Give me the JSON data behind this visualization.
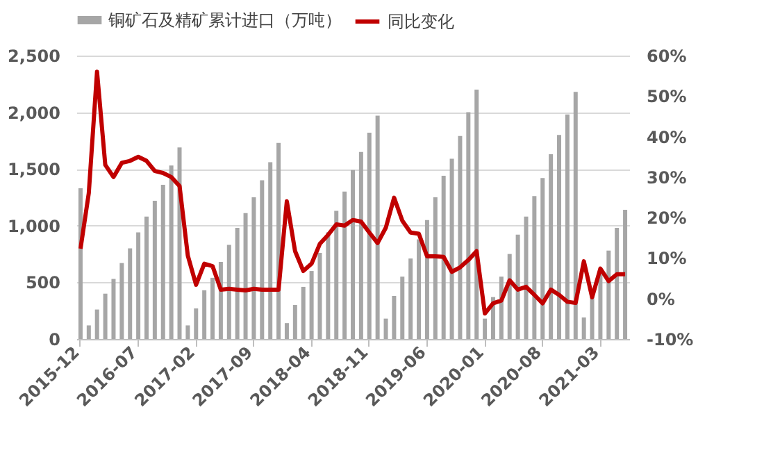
{
  "chart_data": {
    "type": "bar",
    "categories": [
      "2015-12",
      null,
      null,
      null,
      null,
      null,
      null,
      "2016-07",
      null,
      null,
      null,
      null,
      null,
      null,
      "2017-02",
      null,
      null,
      null,
      null,
      null,
      null,
      "2017-09",
      null,
      null,
      null,
      null,
      null,
      null,
      "2018-04",
      null,
      null,
      null,
      null,
      null,
      null,
      "2018-11",
      null,
      null,
      null,
      null,
      null,
      null,
      "2019-06",
      null,
      null,
      null,
      null,
      null,
      null,
      "2020-01",
      null,
      null,
      null,
      null,
      null,
      null,
      "2020-08",
      null,
      null,
      null,
      null,
      null,
      null,
      "2021-03",
      null,
      null,
      null
    ],
    "series": [
      {
        "name": "铜矿石及精矿累计进口（万吨）",
        "color": "#a6a6a6",
        "values": [
          1330,
          120,
          260,
          400,
          530,
          670,
          800,
          940,
          1080,
          1220,
          1360,
          1530,
          1690,
          120,
          270,
          430,
          540,
          680,
          830,
          980,
          1110,
          1250,
          1400,
          1560,
          1730,
          140,
          300,
          460,
          600,
          760,
          940,
          1130,
          1300,
          1490,
          1650,
          1820,
          1970,
          180,
          380,
          550,
          710,
          880,
          1050,
          1250,
          1440,
          1590,
          1790,
          2000,
          2200,
          180,
          370,
          550,
          750,
          920,
          1080,
          1260,
          1420,
          1630,
          1800,
          1980,
          2180,
          190,
          370,
          570,
          780,
          980,
          1140
        ]
      },
      {
        "name": "同比变化",
        "type": "line",
        "axis": "y2",
        "color": "#c00000",
        "values": [
          12.3,
          26,
          56,
          33,
          30,
          33.5,
          34,
          35,
          34,
          31.5,
          31,
          30,
          27.8,
          10.6,
          3.4,
          8.6,
          8,
          2.2,
          2.4,
          2.2,
          2,
          2.4,
          2.2,
          2.2,
          2.2,
          24,
          11.7,
          6.8,
          8.6,
          13.5,
          15.7,
          18.3,
          18,
          19.4,
          19,
          16.3,
          13.7,
          17.5,
          24.9,
          19.2,
          16.3,
          16,
          10.4,
          10.4,
          10.3,
          6.6,
          7.7,
          9.5,
          11.7,
          -3.7,
          -1.2,
          -0.5,
          4.5,
          2.2,
          2.9,
          0.9,
          -1.2,
          2.2,
          0.9,
          -0.8,
          -1.1,
          9.2,
          0.3,
          7.4,
          4.3,
          6,
          6
        ]
      }
    ],
    "ylim": [
      0,
      2500
    ],
    "yticks": [
      0,
      {
        "value": 500,
        "label": "500"
      },
      {
        "value": 1000,
        "label": "1,000"
      },
      {
        "value": 1500,
        "label": "1,500"
      },
      {
        "value": 2000,
        "label": "2,000"
      },
      {
        "value": 2500,
        "label": "2,500"
      }
    ],
    "y2lim": [
      -10,
      60
    ],
    "y2ticks": [
      {
        "value": -10,
        "label": "-10%"
      },
      {
        "value": 0,
        "label": "0%"
      },
      {
        "value": 10,
        "label": "10%"
      },
      {
        "value": 20,
        "label": "20%"
      },
      {
        "value": 30,
        "label": "30%"
      },
      {
        "value": 40,
        "label": "40%"
      },
      {
        "value": 50,
        "label": "50%"
      },
      {
        "value": 60,
        "label": "60%"
      }
    ],
    "grid": "y",
    "legend": "top",
    "line_style": "solid",
    "marker": "none"
  }
}
